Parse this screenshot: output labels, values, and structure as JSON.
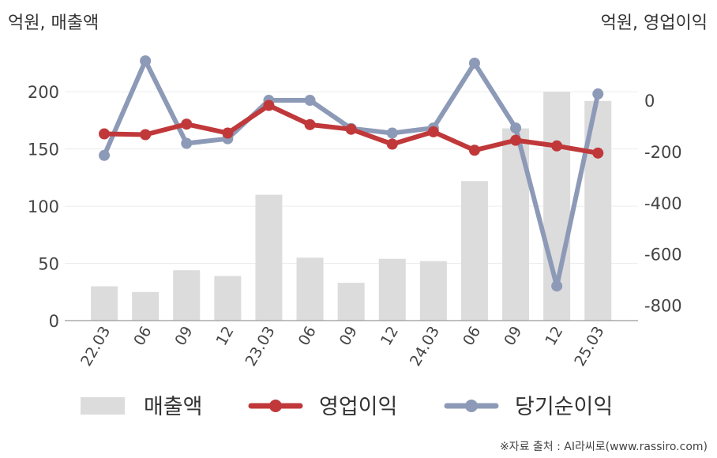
{
  "chart_data": {
    "type": "bar+line",
    "categories": [
      "22.03",
      "06",
      "09",
      "12",
      "23.03",
      "06",
      "09",
      "12",
      "24.03",
      "06",
      "09",
      "12",
      "25.03"
    ],
    "left_axis": {
      "unit_label": "억원, 매출액",
      "ylim": [
        0,
        225
      ],
      "ticks": [
        "0",
        "50",
        "100",
        "150",
        "200"
      ],
      "tick_values": [
        0,
        50,
        100,
        150,
        200
      ]
    },
    "right_axis": {
      "unit_label": "억원, 영업이익",
      "ylim": [
        -860,
        145
      ],
      "ticks": [
        "0",
        "-200",
        "-400",
        "-600",
        "-800"
      ],
      "tick_values": [
        0,
        -200,
        -400,
        -600,
        -800
      ]
    },
    "series": [
      {
        "name": "매출액",
        "kind": "bar",
        "axis": "left",
        "color": "#dcdcdc",
        "values": [
          30,
          25,
          44,
          39,
          110,
          55,
          33,
          54,
          52,
          122,
          168,
          200,
          192
        ]
      },
      {
        "name": "영업이익",
        "kind": "line",
        "axis": "right",
        "color": "#c0383a",
        "values": [
          -131,
          -134,
          -93,
          -128,
          -20,
          -95,
          -113,
          -171,
          -123,
          -195,
          -156,
          -178,
          -206
        ]
      },
      {
        "name": "당기순이익",
        "kind": "line",
        "axis": "right",
        "color": "#8d9ab7",
        "values": [
          -215,
          154,
          -168,
          -150,
          0,
          0,
          -110,
          -128,
          -108,
          145,
          -108,
          -725,
          25
        ]
      }
    ],
    "grid": true,
    "legend_position": "bottom"
  },
  "source_note": "※자료 출처 : AI라씨로(www.rassiro.com)"
}
